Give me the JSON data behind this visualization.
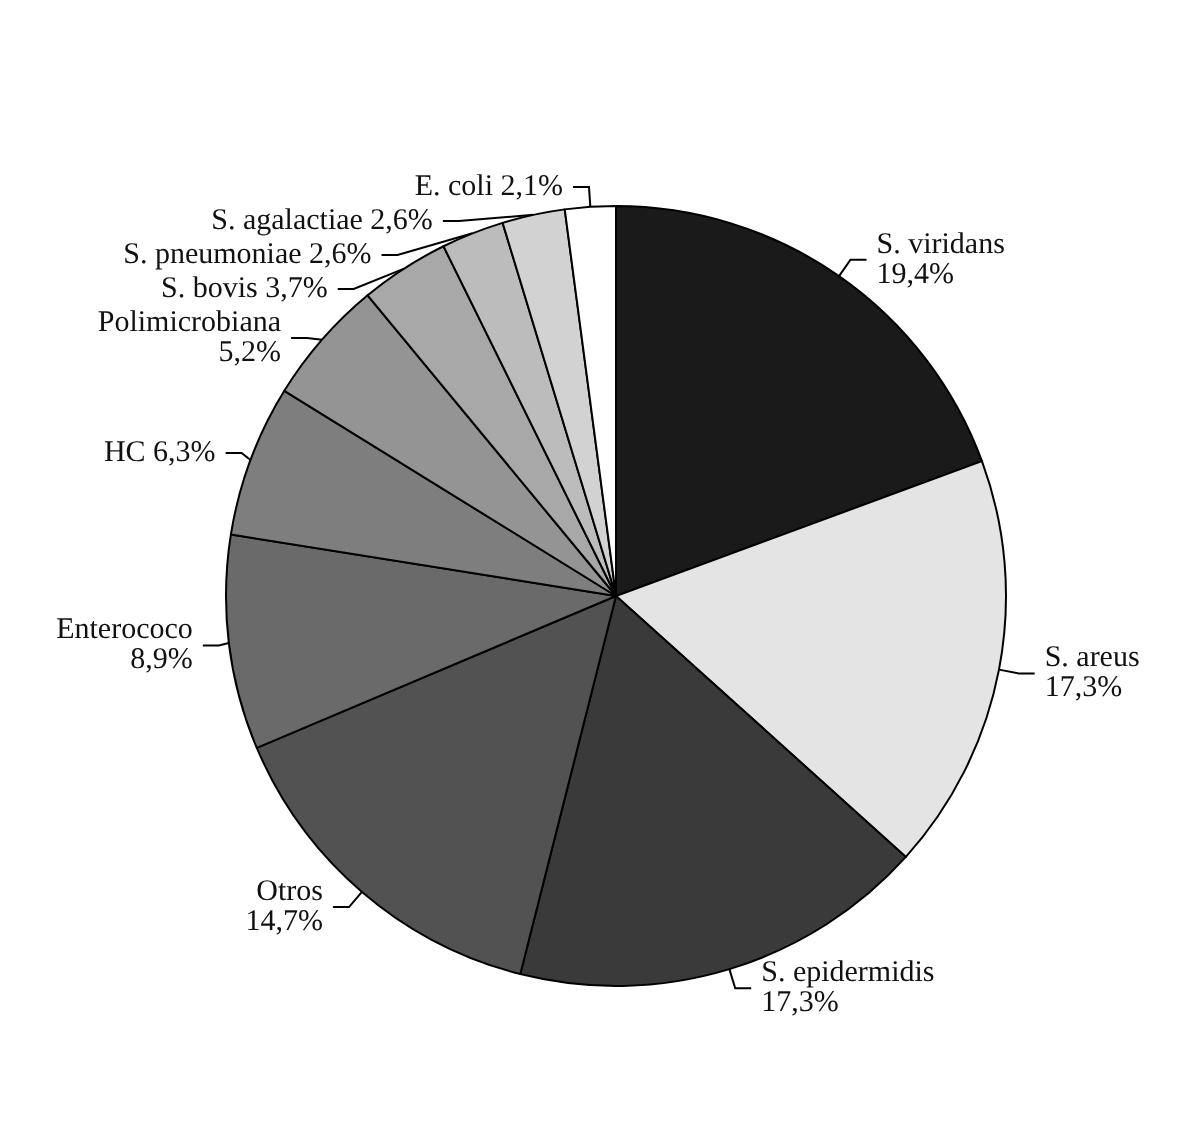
{
  "chart_data": {
    "type": "pie",
    "categories": [
      "S. viridans",
      "S. areus",
      "S. epidermidis",
      "Otros",
      "Enterococo",
      "HC",
      "Polimicrobiana",
      "S. bovis",
      "S. pneumoniae",
      "S. agalactiae",
      "E. coli"
    ],
    "values": [
      19.4,
      17.3,
      17.3,
      14.7,
      8.9,
      6.3,
      5.2,
      3.7,
      2.6,
      2.6,
      2.1
    ],
    "value_labels": [
      "19,4%",
      "17,3%",
      "17,3%",
      "14,7%",
      "8,9%",
      "6,3%",
      "5,2%",
      "3,7%",
      "2,6%",
      "2,6%",
      "2,1%"
    ],
    "colors": [
      "#1a1a1a",
      "#e4e4e4",
      "#3a3a3a",
      "#525252",
      "#6a6a6a",
      "#7e7e7e",
      "#949494",
      "#a8a8a8",
      "#bcbcbc",
      "#d2d2d2",
      "#ffffff"
    ],
    "legend": false
  }
}
